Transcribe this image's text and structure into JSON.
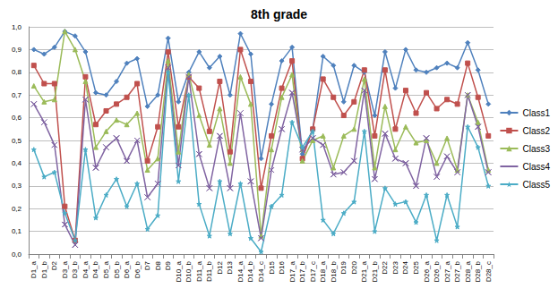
{
  "chart_data": {
    "type": "line",
    "title": "8th grade",
    "categories": [
      "D1_a",
      "D1_b",
      "D2",
      "D3_a",
      "D3_b",
      "D4_a",
      "D4_b",
      "D5_a",
      "D5_b",
      "D6_a",
      "D6_b",
      "D7",
      "D8",
      "D9",
      "D10_a",
      "D10_b",
      "D11_a",
      "D11_b",
      "D12",
      "D13",
      "D14_a",
      "D14_b",
      "D14_c",
      "D15",
      "D16",
      "D17_a",
      "D17_b",
      "D17_c",
      "D18_a",
      "D18_b",
      "D19",
      "D20",
      "D21_a",
      "D21_b",
      "D22",
      "D23",
      "D24",
      "D25",
      "D26_a",
      "D26_b",
      "D27_a",
      "D27_b",
      "D28_a",
      "D28_b",
      "D28_c"
    ],
    "series": [
      {
        "name": "Class1",
        "color": "#4f81bd",
        "marker": "diamond",
        "values": [
          0.9,
          0.88,
          0.91,
          0.98,
          0.96,
          0.89,
          0.71,
          0.7,
          0.76,
          0.84,
          0.86,
          0.65,
          0.7,
          0.95,
          0.67,
          0.8,
          0.89,
          0.82,
          0.87,
          0.7,
          0.97,
          0.88,
          0.42,
          0.66,
          0.85,
          0.91,
          0.44,
          0.55,
          0.87,
          0.83,
          0.67,
          0.83,
          0.8,
          0.61,
          0.89,
          0.73,
          0.9,
          0.81,
          0.8,
          0.82,
          0.84,
          0.82,
          0.93,
          0.81,
          0.66
        ]
      },
      {
        "name": "Class2",
        "color": "#c0504d",
        "marker": "square",
        "values": [
          0.83,
          0.75,
          0.75,
          0.21,
          0.06,
          0.78,
          0.57,
          0.63,
          0.66,
          0.69,
          0.75,
          0.41,
          0.56,
          0.89,
          0.56,
          0.78,
          0.73,
          0.54,
          0.76,
          0.45,
          0.9,
          0.76,
          0.29,
          0.52,
          0.73,
          0.85,
          0.42,
          0.55,
          0.77,
          0.69,
          0.61,
          0.67,
          0.81,
          0.52,
          0.81,
          0.55,
          0.72,
          0.62,
          0.71,
          0.64,
          0.68,
          0.66,
          0.84,
          0.69,
          0.52
        ]
      },
      {
        "name": "Class3",
        "color": "#9bbb59",
        "marker": "triangle",
        "values": [
          0.74,
          0.67,
          0.68,
          0.98,
          0.9,
          0.76,
          0.47,
          0.54,
          0.59,
          0.57,
          0.62,
          0.37,
          0.42,
          0.85,
          0.45,
          0.79,
          0.61,
          0.48,
          0.64,
          0.4,
          0.78,
          0.66,
          0.08,
          0.46,
          0.69,
          0.79,
          0.41,
          0.5,
          0.52,
          0.38,
          0.52,
          0.55,
          0.77,
          0.38,
          0.65,
          0.46,
          0.56,
          0.49,
          0.5,
          0.4,
          0.51,
          0.37,
          0.7,
          0.58,
          0.37
        ]
      },
      {
        "name": "Class4",
        "color": "#8064a2",
        "marker": "cross",
        "values": [
          0.66,
          0.58,
          0.48,
          0.13,
          0.04,
          0.68,
          0.38,
          0.47,
          0.51,
          0.41,
          0.5,
          0.25,
          0.31,
          0.82,
          0.39,
          0.78,
          0.44,
          0.29,
          0.52,
          0.29,
          0.62,
          0.32,
          0.07,
          0.37,
          0.55,
          0.71,
          0.46,
          0.51,
          0.48,
          0.35,
          0.36,
          0.41,
          0.72,
          0.33,
          0.53,
          0.42,
          0.4,
          0.3,
          0.51,
          0.34,
          0.43,
          0.36,
          0.7,
          0.56,
          0.36
        ]
      },
      {
        "name": "Class5",
        "color": "#4bacc6",
        "marker": "star",
        "values": [
          0.46,
          0.34,
          0.36,
          0.18,
          0.06,
          0.46,
          0.16,
          0.26,
          0.33,
          0.21,
          0.31,
          0.11,
          0.17,
          0.8,
          0.32,
          0.7,
          0.22,
          0.08,
          0.32,
          0.09,
          0.31,
          0.07,
          0.01,
          0.21,
          0.26,
          0.58,
          0.47,
          0.54,
          0.15,
          0.09,
          0.18,
          0.23,
          0.54,
          0.1,
          0.29,
          0.22,
          0.23,
          0.14,
          0.26,
          0.06,
          0.26,
          0.12,
          0.56,
          0.47,
          0.3
        ]
      }
    ],
    "ylim": [
      0,
      1
    ],
    "yticks": [
      {
        "value": 0,
        "label": "0,0"
      },
      {
        "value": 0.1,
        "label": "0,1"
      },
      {
        "value": 0.2,
        "label": "0,2"
      },
      {
        "value": 0.3,
        "label": "0,3"
      },
      {
        "value": 0.4,
        "label": "0,4"
      },
      {
        "value": 0.5,
        "label": "0,5"
      },
      {
        "value": 0.6,
        "label": "0,6"
      },
      {
        "value": 0.7,
        "label": "0,7"
      },
      {
        "value": 0.8,
        "label": "0,8"
      },
      {
        "value": 0.9,
        "label": "0,9"
      },
      {
        "value": 1,
        "label": "1,0"
      }
    ],
    "grid": true,
    "legend": "right"
  }
}
